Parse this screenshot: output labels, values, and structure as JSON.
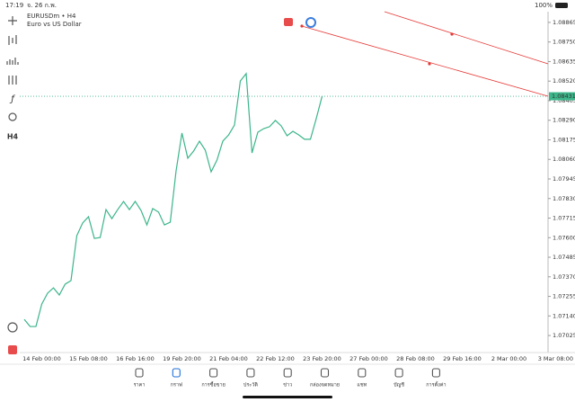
{
  "status_bar": {
    "time": "17:19",
    "date": "จ. 26 ก.พ.",
    "battery": "100%"
  },
  "toolbar": {
    "timeframe": "H4"
  },
  "chart_data": {
    "type": "line",
    "title": "EURUSDm • H4",
    "subtitle": "Euro vs US Dollar",
    "color": "#3cb58a",
    "current_price": 1.08431,
    "ylim": [
      1.06925,
      1.08928
    ],
    "yticks": [
      1.08865,
      {
        "value": 1.0875,
        "label": "1.08750"
      },
      1.08635,
      {
        "value": 1.0852,
        "label": "1.08520"
      },
      1.08405,
      {
        "value": 1.0829,
        "label": "1.08290"
      },
      1.08175,
      {
        "value": 1.0806,
        "label": "1.08060"
      },
      1.07945,
      {
        "value": 1.0783,
        "label": "1.07830"
      },
      1.07715,
      {
        "value": 1.076,
        "label": "1.07600"
      },
      1.07485,
      {
        "value": 1.0737,
        "label": "1.07370"
      },
      1.07255,
      {
        "value": 1.0714,
        "label": "1.07140"
      },
      1.07025
    ],
    "categories": [
      null,
      null,
      null,
      "14 Feb 00:00",
      null,
      null,
      null,
      null,
      null,
      null,
      null,
      "15 Feb 08:00",
      null,
      null,
      null,
      null,
      null,
      null,
      null,
      "16 Feb 16:00",
      null,
      null,
      null,
      null,
      null,
      null,
      null,
      "19 Feb 20:00",
      null,
      null,
      null,
      null,
      null,
      null,
      null,
      "21 Feb 04:00",
      null,
      null,
      null,
      null,
      null,
      null,
      null,
      "22 Feb 12:00",
      null,
      null,
      null,
      null,
      null,
      null,
      null,
      "23 Feb 20:00",
      null,
      null,
      null,
      null,
      null,
      null,
      null,
      "27 Feb 00:00",
      null,
      null,
      null,
      null,
      null,
      null,
      null,
      "28 Feb 08:00",
      null,
      null,
      null,
      null,
      null,
      null,
      null,
      "29 Feb 16:00",
      null,
      null,
      null,
      null,
      null,
      null,
      null,
      "2 Mar 00:00",
      null,
      null,
      null,
      null,
      null,
      null,
      null,
      "3 Mar 08:00"
    ],
    "values": [
      1.0712,
      1.07078,
      1.07078,
      1.0721,
      1.07274,
      1.07305,
      1.07263,
      1.07327,
      1.07348,
      1.07612,
      1.07686,
      1.07723,
      1.07596,
      1.07601,
      1.07765,
      1.07712,
      1.07765,
      1.07813,
      1.07765,
      1.07813,
      1.0776,
      1.07675,
      1.07771,
      1.0775,
      1.07675,
      1.07691,
      1.07993,
      1.08215,
      1.08067,
      1.08109,
      1.08167,
      1.08114,
      1.07987,
      1.08056,
      1.08167,
      1.08204,
      1.08262,
      1.08521,
      1.08564,
      1.08098,
      1.0822,
      1.08241,
      1.08252,
      1.08289,
      1.08257,
      1.08199,
      1.08225,
      1.08204,
      1.08178,
      1.08178,
      1.083,
      1.08431,
      null,
      null,
      null,
      null,
      null,
      null,
      null,
      null,
      null,
      null,
      null,
      null,
      null,
      null,
      null,
      null,
      null,
      null,
      null,
      null,
      null,
      null,
      null,
      null,
      null,
      null,
      null,
      null,
      null,
      null,
      null,
      null,
      null,
      null,
      null,
      null,
      null,
      null,
      null,
      null
    ]
  },
  "tabs": [
    "ราคา",
    "กราฟ",
    "การซื้อขาย",
    "ประวัติ",
    "ข่าว",
    "กล่องจดหมาย",
    "แชท",
    "บัญชี",
    "การตั้งค่า"
  ]
}
